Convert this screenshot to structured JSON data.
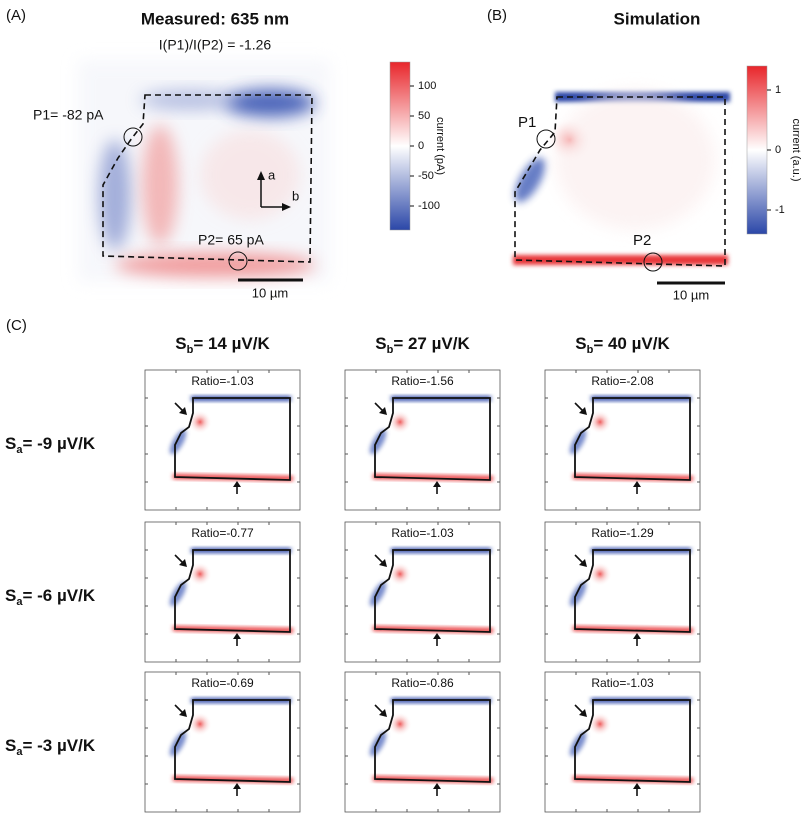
{
  "panel_a": {
    "label": "(A)",
    "title": "Measured: 635 nm",
    "ratio": "I(P1)/I(P2) = -1.26",
    "p1": "P1= -82 pA",
    "p2": "P2=  65 pA",
    "axis_a": "a",
    "axis_b": "b",
    "scale_bar": "10 µm",
    "colorbar": {
      "label": "current (pA)",
      "lim": [
        -140,
        140
      ],
      "ticks": [
        100,
        50,
        0,
        -50,
        -100
      ]
    }
  },
  "panel_b": {
    "label": "(B)",
    "title": "Simulation",
    "p1": "P1",
    "p2": "P2",
    "scale_bar": "10 µm",
    "colorbar": {
      "label": "current (a.u.)",
      "lim": [
        -1.4,
        1.4
      ],
      "ticks": [
        1,
        0,
        -1
      ]
    }
  },
  "panel_c": {
    "label": "(C)",
    "columns": [
      {
        "symbol": "S",
        "sub": "b",
        "rest": "= 14 µV/K"
      },
      {
        "symbol": "S",
        "sub": "b",
        "rest": "= 27  µV/K"
      },
      {
        "symbol": "S",
        "sub": "b",
        "rest": "= 40 µV/K"
      }
    ],
    "rows": [
      {
        "symbol": "S",
        "sub": "a",
        "rest": "= -9 µV/K"
      },
      {
        "symbol": "S",
        "sub": "a",
        "rest": "= -6 µV/K"
      },
      {
        "symbol": "S",
        "sub": "a",
        "rest": "= -3 µV/K"
      }
    ],
    "ratios": [
      [
        "Ratio=-1.03",
        "Ratio=-1.56",
        "Ratio=-2.08"
      ],
      [
        "Ratio=-0.77",
        "Ratio=-1.03",
        "Ratio=-1.29"
      ],
      [
        "Ratio=-0.69",
        "Ratio=-0.86",
        "Ratio=-1.03"
      ]
    ]
  }
}
